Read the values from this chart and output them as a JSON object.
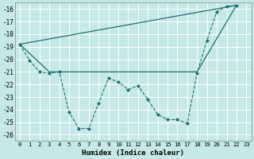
{
  "xlabel": "Humidex (Indice chaleur)",
  "ylabel": "",
  "xlim": [
    -0.5,
    23.5
  ],
  "ylim": [
    -26.5,
    -15.5
  ],
  "yticks": [
    -16,
    -17,
    -18,
    -19,
    -20,
    -21,
    -22,
    -23,
    -24,
    -25,
    -26
  ],
  "xticks": [
    0,
    1,
    2,
    3,
    4,
    5,
    6,
    7,
    8,
    9,
    10,
    11,
    12,
    13,
    14,
    15,
    16,
    17,
    18,
    19,
    20,
    21,
    22,
    23
  ],
  "bg_color": "#c6e8e8",
  "line_color": "#1e7070",
  "series1_x": [
    0,
    1,
    2,
    3,
    4,
    5,
    6,
    7,
    8,
    9,
    10,
    11,
    12,
    13,
    14,
    15,
    16,
    17,
    18,
    19,
    20,
    21,
    22
  ],
  "series1_y": [
    -18.8,
    -20.1,
    -21.0,
    -21.1,
    -21.0,
    -24.2,
    -25.5,
    -25.5,
    -23.5,
    -21.5,
    -21.8,
    -22.4,
    -22.1,
    -23.2,
    -24.4,
    -24.8,
    -24.8,
    -25.1,
    -21.1,
    -18.5,
    -16.2,
    -15.8,
    -15.7
  ],
  "series2_x": [
    0,
    22
  ],
  "series2_y": [
    -18.8,
    -15.7
  ],
  "series3_x": [
    0,
    3,
    18,
    22
  ],
  "series3_y": [
    -18.8,
    -21.0,
    -21.0,
    -15.7
  ]
}
